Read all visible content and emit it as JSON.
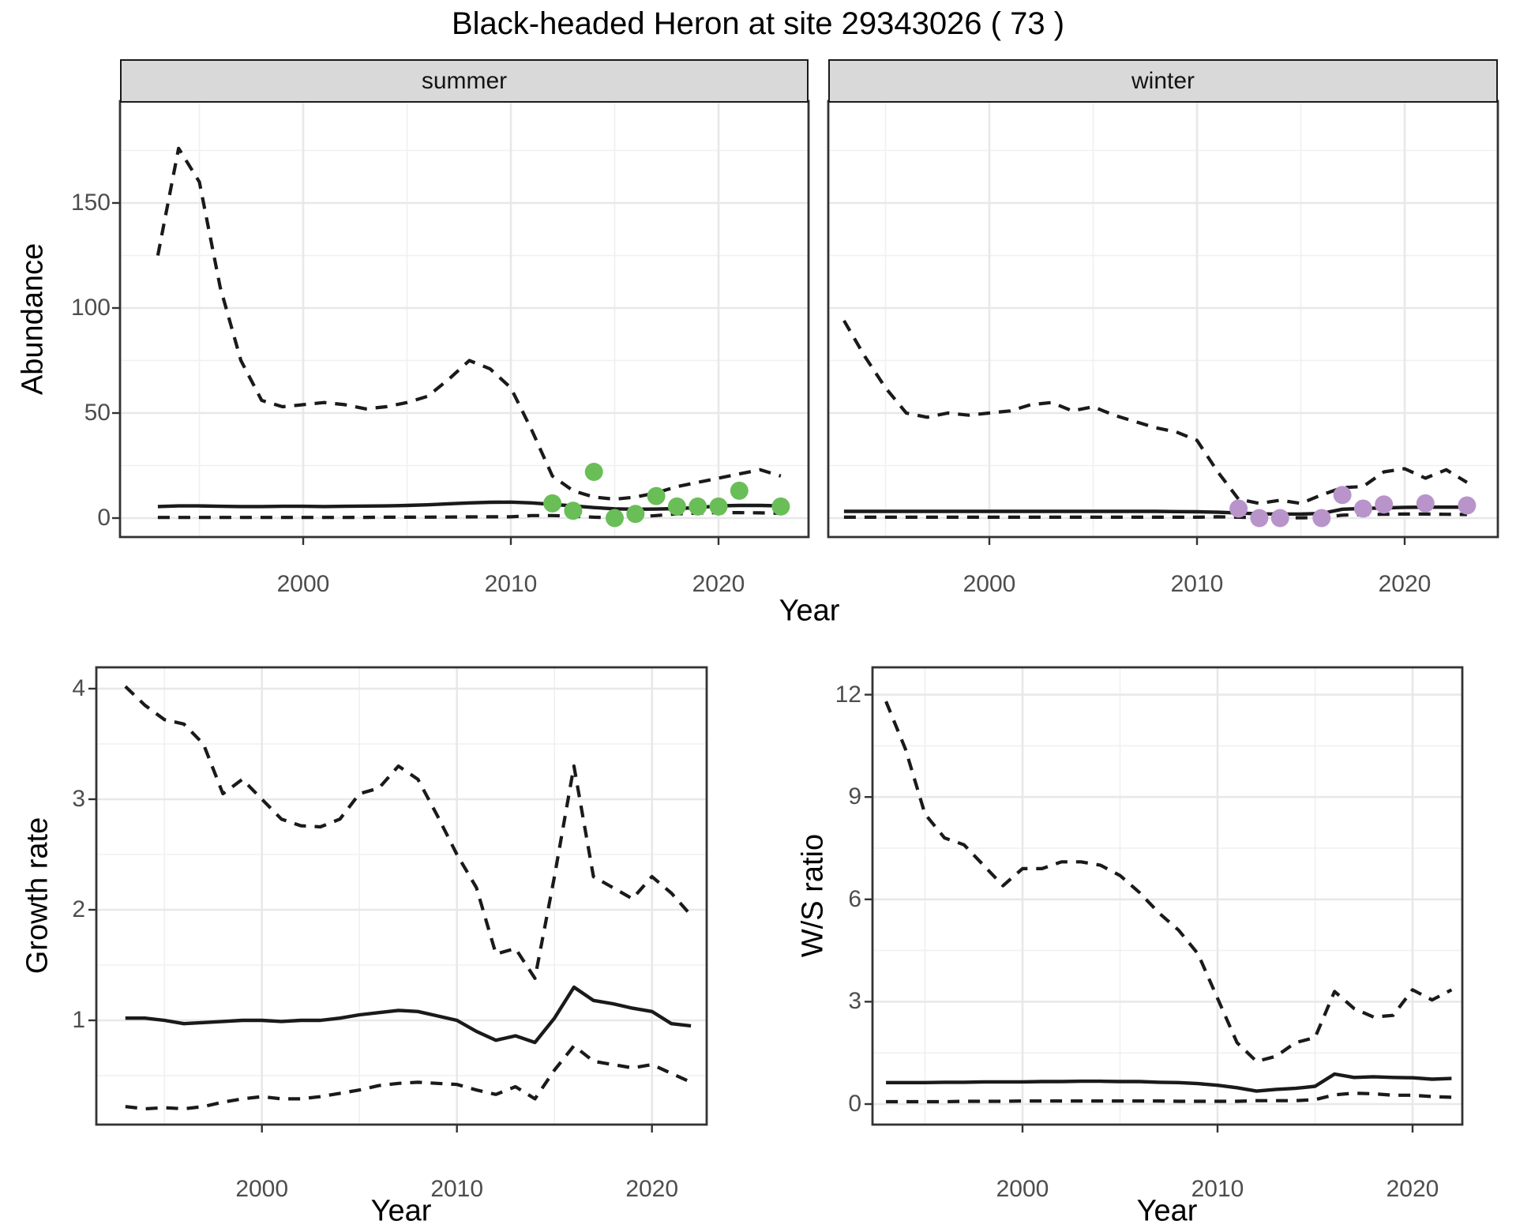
{
  "title": "Black-headed Heron at site 29343026 ( 73 )",
  "colors": {
    "summer_points": "#6abe58",
    "winter_points": "#b894cb",
    "line": "#1a1a1a",
    "grid_major": "#e8e8e8",
    "grid_minor": "#f0f0f0",
    "panel_border": "#333333",
    "strip_bg": "#d9d9d9",
    "tick_text": "#4d4d4d"
  },
  "chart_data": [
    {
      "id": "abundance-summer",
      "type": "line",
      "facet_label": "summer",
      "ylabel": "Abundance",
      "xlabel": "Year",
      "xticks": [
        2000,
        2010,
        2020
      ],
      "yticks": [
        0,
        50,
        100,
        150
      ],
      "x_minor": [
        1995,
        2005,
        2015
      ],
      "y_minor": [
        25,
        75,
        125,
        175
      ],
      "xlim": [
        1990.8,
        2024.4
      ],
      "ylim": [
        -12.8,
        198.5
      ],
      "x": [
        1993,
        1994,
        1995,
        1996,
        1997,
        1998,
        1999,
        2000,
        2001,
        2002,
        2003,
        2004,
        2005,
        2006,
        2007,
        2008,
        2009,
        2010,
        2011,
        2012,
        2013,
        2014,
        2015,
        2016,
        2017,
        2018,
        2019,
        2020,
        2021,
        2022,
        2023
      ],
      "series": [
        {
          "name": "upper-95ci",
          "style": "dashed",
          "values": [
            125,
            176,
            160,
            110,
            75,
            56,
            53,
            54,
            55,
            54,
            52,
            53,
            55,
            58,
            66,
            75,
            71,
            62,
            42,
            20,
            13,
            10,
            9,
            10,
            12,
            15,
            17,
            19,
            21,
            23,
            20
          ]
        },
        {
          "name": "median",
          "style": "solid",
          "values": [
            5.5,
            5.8,
            5.8,
            5.6,
            5.5,
            5.5,
            5.6,
            5.6,
            5.5,
            5.6,
            5.7,
            5.8,
            6.0,
            6.3,
            6.8,
            7.2,
            7.5,
            7.6,
            7.2,
            6.5,
            5.8,
            5.0,
            4.4,
            4.2,
            4.3,
            4.5,
            5.0,
            5.8,
            6.0,
            6.0,
            5.8
          ]
        },
        {
          "name": "lower-95ci",
          "style": "dashed",
          "values": [
            0.3,
            0.3,
            0.3,
            0.3,
            0.3,
            0.3,
            0.3,
            0.3,
            0.3,
            0.3,
            0.35,
            0.4,
            0.4,
            0.45,
            0.5,
            0.55,
            0.6,
            0.6,
            1.2,
            1.2,
            0.9,
            0.4,
            0.2,
            0.5,
            1.2,
            2.0,
            2.4,
            2.6,
            2.6,
            2.5,
            2.3
          ]
        }
      ],
      "points": {
        "name": "observed-counts-summer",
        "color": "#6abe58",
        "xy": [
          [
            2012,
            7
          ],
          [
            2013,
            3.5
          ],
          [
            2014,
            22
          ],
          [
            2015,
            0
          ],
          [
            2016,
            2
          ],
          [
            2017,
            10.5
          ],
          [
            2018,
            5.5
          ],
          [
            2019,
            5.5
          ],
          [
            2020,
            5.5
          ],
          [
            2021,
            13
          ],
          [
            2023,
            5.5
          ]
        ]
      }
    },
    {
      "id": "abundance-winter",
      "type": "line",
      "facet_label": "winter",
      "ylabel": "Abundance",
      "xlabel": "Year",
      "xticks": [
        2000,
        2010,
        2020
      ],
      "yticks": [
        0,
        50,
        100,
        150
      ],
      "x_minor": [
        1995,
        2005,
        2015
      ],
      "y_minor": [
        25,
        75,
        125,
        175
      ],
      "xlim": [
        1992.3,
        2024.6
      ],
      "ylim": [
        -12.8,
        198.5
      ],
      "x": [
        1993,
        1994,
        1995,
        1996,
        1997,
        1998,
        1999,
        2000,
        2001,
        2002,
        2003,
        2004,
        2005,
        2006,
        2007,
        2008,
        2009,
        2010,
        2011,
        2012,
        2013,
        2014,
        2015,
        2016,
        2017,
        2018,
        2019,
        2020,
        2021,
        2022,
        2023
      ],
      "series": [
        {
          "name": "upper-95ci",
          "style": "dashed",
          "values": [
            94,
            77,
            62,
            50,
            48,
            50,
            49,
            50,
            51,
            54,
            55,
            51,
            53,
            49,
            46,
            43,
            41,
            37,
            22,
            9,
            7,
            8.5,
            7,
            11,
            14.5,
            15,
            22,
            23.5,
            19,
            23,
            17
          ]
        },
        {
          "name": "median",
          "style": "solid",
          "values": [
            3.2,
            3.2,
            3.2,
            3.2,
            3.2,
            3.2,
            3.2,
            3.2,
            3.2,
            3.2,
            3.2,
            3.2,
            3.2,
            3.2,
            3.2,
            3.2,
            3.1,
            3.0,
            2.8,
            2.4,
            2.0,
            1.9,
            1.9,
            2.2,
            4.2,
            4.6,
            4.8,
            5.1,
            5.2,
            5.2,
            5.2
          ]
        },
        {
          "name": "lower-95ci",
          "style": "dashed",
          "values": [
            0.4,
            0.4,
            0.4,
            0.4,
            0.4,
            0.4,
            0.4,
            0.4,
            0.4,
            0.4,
            0.4,
            0.4,
            0.4,
            0.4,
            0.4,
            0.4,
            0.4,
            0.4,
            0.6,
            0.4,
            0.2,
            0.1,
            0.1,
            0.3,
            1.4,
            1.7,
            1.8,
            1.9,
            1.9,
            1.8,
            1.7
          ]
        }
      ],
      "points": {
        "name": "observed-counts-winter",
        "color": "#b894cb",
        "xy": [
          [
            2012,
            4.5
          ],
          [
            2013,
            0
          ],
          [
            2014,
            0
          ],
          [
            2016,
            0
          ],
          [
            2017,
            11
          ],
          [
            2018,
            4.5
          ],
          [
            2019,
            6.5
          ],
          [
            2021,
            7
          ],
          [
            2023,
            6
          ]
        ]
      }
    },
    {
      "id": "growth-rate",
      "type": "line",
      "facet_label": "",
      "ylabel": "Growth rate",
      "xlabel": "Year",
      "xticks": [
        2000,
        2010,
        2020
      ],
      "yticks": [
        1,
        2,
        3,
        4
      ],
      "x_minor": [
        1995,
        2005,
        2015
      ],
      "y_minor": [
        0.5,
        1.5,
        2.5,
        3.5
      ],
      "xlim": [
        1991.5,
        2022.8
      ],
      "ylim": [
        0.06,
        4.19
      ],
      "x": [
        1993,
        1994,
        1995,
        1996,
        1997,
        1998,
        1999,
        2000,
        2001,
        2002,
        2003,
        2004,
        2005,
        2006,
        2007,
        2008,
        2009,
        2010,
        2011,
        2012,
        2013,
        2014,
        2015,
        2016,
        2017,
        2018,
        2019,
        2020,
        2021,
        2022
      ],
      "series": [
        {
          "name": "upper-95ci",
          "style": "dashed",
          "values": [
            4.02,
            3.85,
            3.72,
            3.68,
            3.5,
            3.05,
            3.18,
            3.0,
            2.82,
            2.76,
            2.75,
            2.82,
            3.05,
            3.1,
            3.3,
            3.18,
            2.85,
            2.5,
            2.2,
            1.6,
            1.65,
            1.38,
            2.3,
            3.3,
            2.3,
            2.2,
            2.1,
            2.3,
            2.15,
            1.95
          ]
        },
        {
          "name": "median",
          "style": "solid",
          "values": [
            1.02,
            1.02,
            1.0,
            0.97,
            0.98,
            0.99,
            1.0,
            1.0,
            0.99,
            1.0,
            1.0,
            1.02,
            1.05,
            1.07,
            1.09,
            1.08,
            1.04,
            1.0,
            0.9,
            0.82,
            0.86,
            0.8,
            1.02,
            1.3,
            1.18,
            1.15,
            1.11,
            1.08,
            0.97,
            0.95
          ]
        },
        {
          "name": "lower-95ci",
          "style": "dashed",
          "values": [
            0.22,
            0.2,
            0.21,
            0.2,
            0.22,
            0.26,
            0.29,
            0.31,
            0.29,
            0.29,
            0.31,
            0.34,
            0.37,
            0.41,
            0.43,
            0.44,
            0.43,
            0.42,
            0.37,
            0.33,
            0.4,
            0.29,
            0.55,
            0.77,
            0.63,
            0.6,
            0.57,
            0.6,
            0.52,
            0.44
          ]
        }
      ],
      "points": null
    },
    {
      "id": "ws-ratio",
      "type": "line",
      "facet_label": "",
      "ylabel": "W/S ratio",
      "xlabel": "Year",
      "xticks": [
        2000,
        2010,
        2020
      ],
      "yticks": [
        0,
        3,
        6,
        9,
        12
      ],
      "x_minor": [
        1995,
        2005,
        2015
      ],
      "y_minor": [
        1.5,
        4.5,
        7.5,
        10.5
      ],
      "xlim": [
        1992.3,
        2022.5
      ],
      "ylim": [
        -0.6,
        12.8
      ],
      "x": [
        1993,
        1994,
        1995,
        1996,
        1997,
        1998,
        1999,
        2000,
        2001,
        2002,
        2003,
        2004,
        2005,
        2006,
        2007,
        2008,
        2009,
        2010,
        2011,
        2012,
        2013,
        2014,
        2015,
        2016,
        2017,
        2018,
        2019,
        2020,
        2021,
        2022
      ],
      "series": [
        {
          "name": "upper-95ci",
          "style": "dashed",
          "values": [
            11.8,
            10.4,
            8.5,
            7.8,
            7.6,
            7.0,
            6.4,
            6.9,
            6.9,
            7.1,
            7.1,
            7.0,
            6.7,
            6.2,
            5.6,
            5.1,
            4.4,
            3.1,
            1.8,
            1.25,
            1.4,
            1.8,
            1.95,
            3.3,
            2.8,
            2.55,
            2.6,
            3.35,
            3.05,
            3.35
          ]
        },
        {
          "name": "median",
          "style": "solid",
          "values": [
            0.63,
            0.63,
            0.63,
            0.64,
            0.64,
            0.65,
            0.65,
            0.65,
            0.66,
            0.66,
            0.67,
            0.67,
            0.66,
            0.66,
            0.64,
            0.63,
            0.6,
            0.55,
            0.48,
            0.38,
            0.43,
            0.46,
            0.52,
            0.88,
            0.78,
            0.8,
            0.78,
            0.77,
            0.73,
            0.75
          ]
        },
        {
          "name": "lower-95ci",
          "style": "dashed",
          "values": [
            0.07,
            0.07,
            0.07,
            0.07,
            0.08,
            0.08,
            0.08,
            0.09,
            0.09,
            0.09,
            0.09,
            0.09,
            0.09,
            0.09,
            0.09,
            0.08,
            0.08,
            0.08,
            0.08,
            0.1,
            0.1,
            0.1,
            0.13,
            0.27,
            0.32,
            0.3,
            0.26,
            0.26,
            0.22,
            0.2
          ]
        }
      ],
      "points": null
    }
  ]
}
